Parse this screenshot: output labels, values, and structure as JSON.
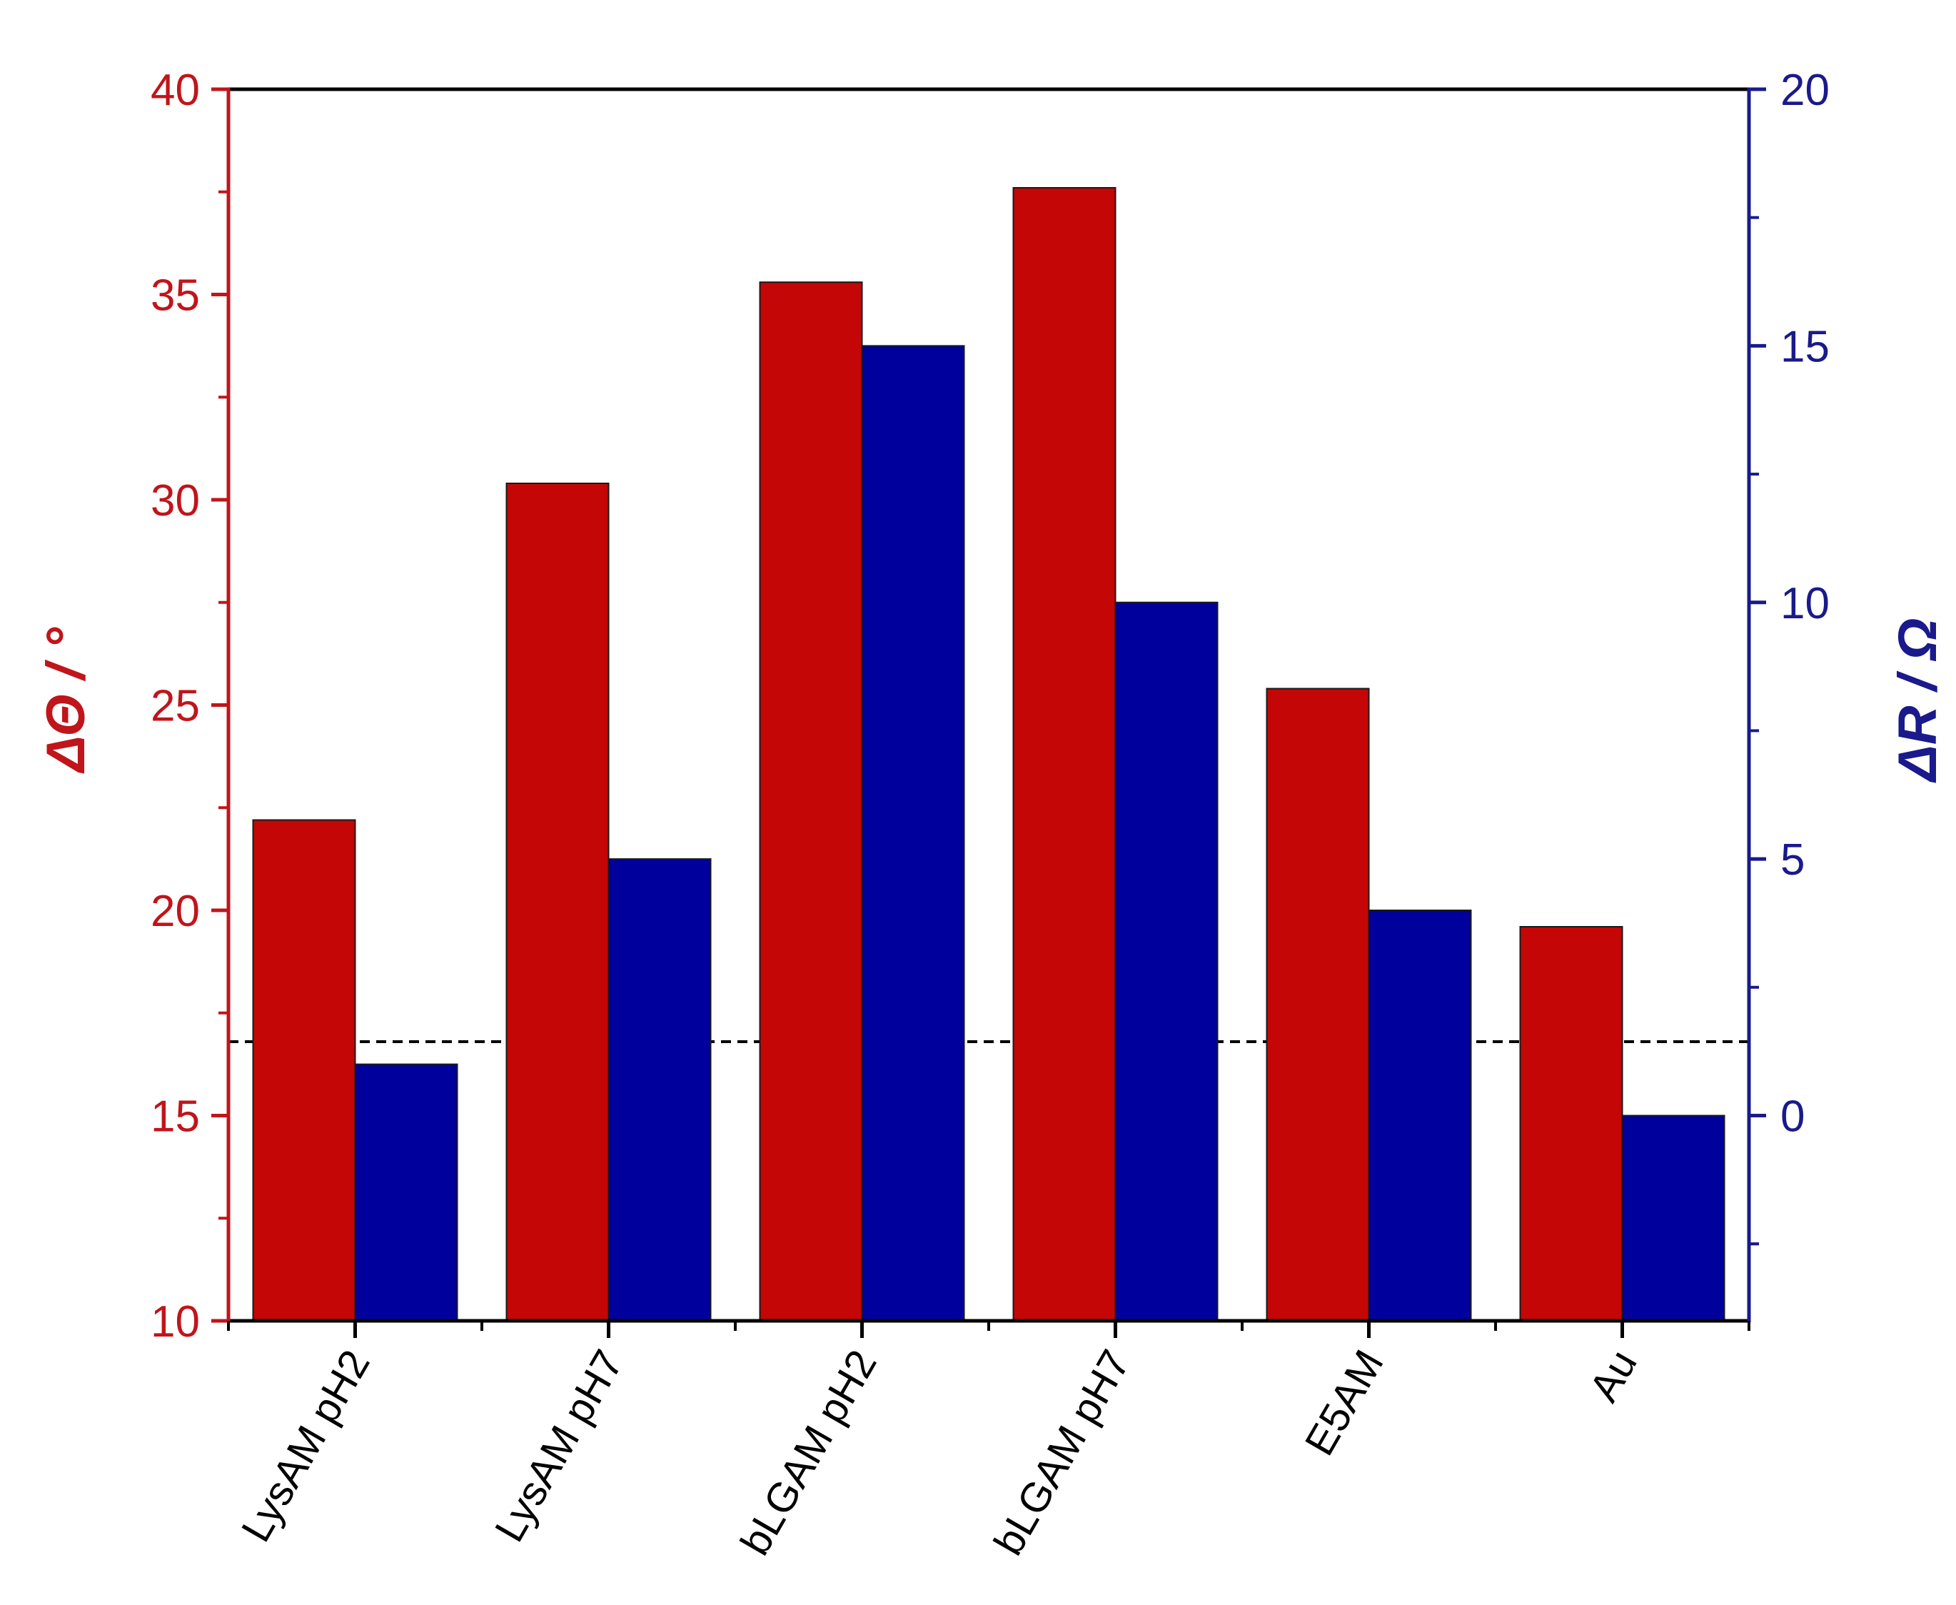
{
  "chart_data": {
    "type": "bar",
    "categories": [
      "LysAM pH2",
      "LysAM pH7",
      "bLGAM pH2",
      "bLGAM pH7",
      "E5AM",
      "Au"
    ],
    "series": [
      {
        "axis": "left",
        "color": "#c40606",
        "values": [
          22.2,
          30.4,
          35.3,
          37.6,
          25.4,
          19.6
        ]
      },
      {
        "axis": "right",
        "color": "#00009c",
        "values": [
          1.0,
          5.0,
          15.0,
          10.0,
          4.0,
          0.0
        ]
      }
    ],
    "y_left": {
      "label": "ΔΘ / °",
      "color": "#c0151b",
      "lim": [
        10,
        40
      ],
      "ticks": [
        "10",
        "15",
        "20",
        "25",
        "30",
        "35",
        "40"
      ]
    },
    "y_right": {
      "label": "ΔR / Ω",
      "color": "#1a1a8c",
      "lim": [
        -4,
        20
      ],
      "ticks": [
        "0",
        "5",
        "10",
        "15",
        "20"
      ]
    },
    "reference_line": {
      "axis": "left",
      "value": 16.8,
      "style": "dashed",
      "color": "#000000"
    },
    "grid": false,
    "legend": "none"
  }
}
